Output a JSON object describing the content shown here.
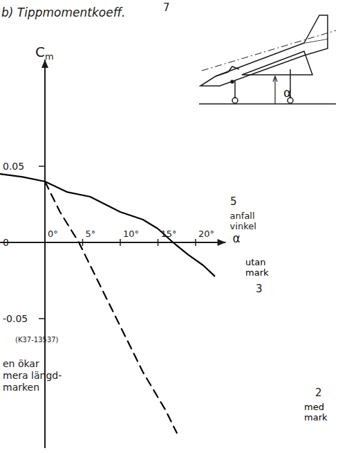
{
  "chart_data": {
    "type": "line",
    "title": "b) Tippmomentkoeff.",
    "ylabel": "Cm",
    "xlabel": "anfall vinkel α",
    "xlim": [
      -6,
      24
    ],
    "xticks": [
      {
        "value": 0,
        "label": "0°"
      },
      {
        "value": 5,
        "label": "5°"
      },
      {
        "value": 10,
        "label": "10°"
      },
      {
        "value": 15,
        "label": "15°"
      },
      {
        "value": 20,
        "label": "20°"
      }
    ],
    "ylim": [
      -0.135,
      0.12
    ],
    "yticks": [
      0.05,
      0,
      -0.05
    ],
    "grid": false,
    "series": [
      {
        "name": "utan mark",
        "color": "#000000",
        "line_style": "solid",
        "x": [
          -6,
          -3,
          0,
          3,
          6,
          10,
          13,
          15,
          17,
          19,
          21,
          22.5
        ],
        "values": [
          0.045,
          0.043,
          0.04,
          0.033,
          0.03,
          0.02,
          0.015,
          0.009,
          0.0,
          -0.008,
          -0.015,
          -0.022
        ]
      },
      {
        "name": "med mark",
        "color": "#000000",
        "line_style": "dashed",
        "x": [
          0,
          2,
          4.5,
          7,
          10,
          13,
          16,
          17.5
        ],
        "values": [
          0.04,
          0.02,
          0.0,
          -0.025,
          -0.055,
          -0.085,
          -0.11,
          -0.125
        ]
      }
    ],
    "annotations": {
      "reference": "(K37-13537)",
      "note": [
        "en ökar",
        "mera längd-",
        "marken"
      ],
      "markers": [
        "7",
        "5",
        "3",
        "2"
      ],
      "sketch_label": "α"
    }
  }
}
